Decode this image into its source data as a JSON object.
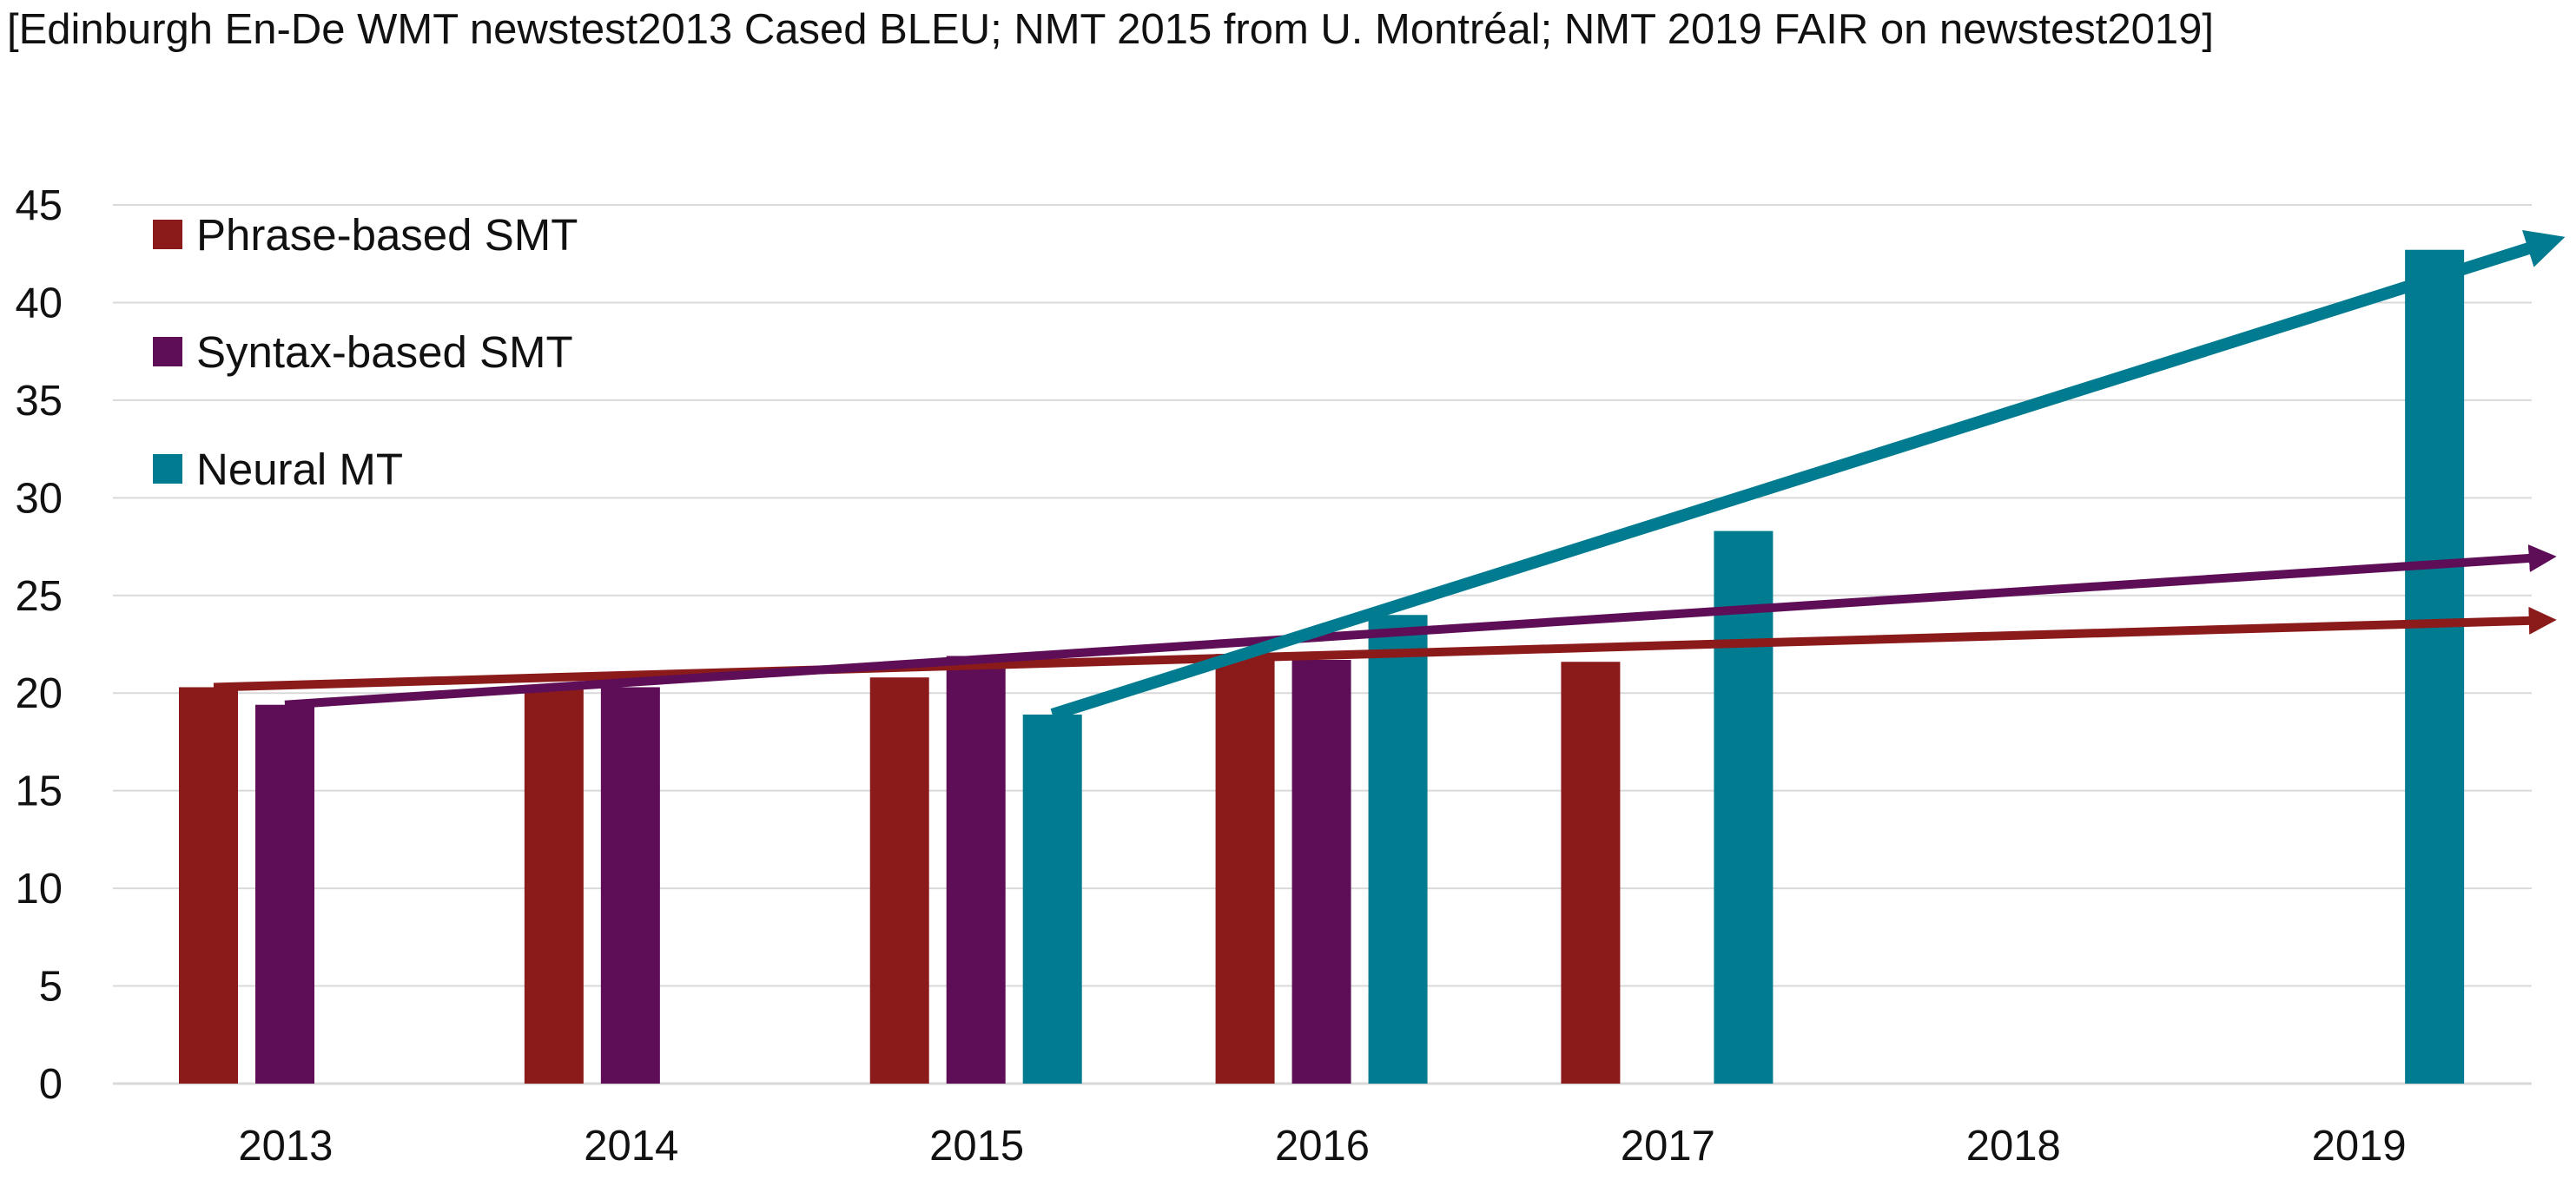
{
  "chart_data": {
    "type": "bar",
    "title": "[Edinburgh En-De WMT newstest2013 Cased BLEU; NMT 2015 from U. Montréal; NMT 2019 FAIR on newstest2019]",
    "xlabel": "",
    "ylabel": "",
    "categories": [
      "2013",
      "2014",
      "2015",
      "2016",
      "2017",
      "2018",
      "2019"
    ],
    "ylim": [
      0,
      45
    ],
    "yticks": [
      0,
      5,
      10,
      15,
      20,
      25,
      30,
      35,
      40,
      45
    ],
    "grid": true,
    "legend_position": "top-left",
    "series": [
      {
        "name": "Phrase-based SMT",
        "color": "#8b1a1a",
        "values": [
          20.3,
          20.3,
          20.8,
          22.0,
          21.6,
          null,
          null
        ]
      },
      {
        "name": "Syntax-based SMT",
        "color": "#5e0e57",
        "values": [
          19.4,
          20.3,
          21.9,
          21.7,
          null,
          null,
          null
        ]
      },
      {
        "name": "Neural MT",
        "color": "#007b8f",
        "values": [
          null,
          null,
          18.9,
          24.0,
          28.3,
          null,
          42.7
        ]
      }
    ],
    "trend_arrows": [
      {
        "series": "Phrase-based SMT",
        "color": "#8b1a1a",
        "from": {
          "x": "2013",
          "y": 20.3
        },
        "to": {
          "x": "2019+",
          "y": 23.8
        }
      },
      {
        "series": "Syntax-based SMT",
        "color": "#5e0e57",
        "from": {
          "x": "2013",
          "y": 19.4
        },
        "to": {
          "x": "2019+",
          "y": 27.0
        }
      },
      {
        "series": "Neural MT",
        "color": "#007b8f",
        "from": {
          "x": "2015",
          "y": 18.9
        },
        "to": {
          "x": "2019+",
          "y": 43.0
        }
      }
    ]
  }
}
